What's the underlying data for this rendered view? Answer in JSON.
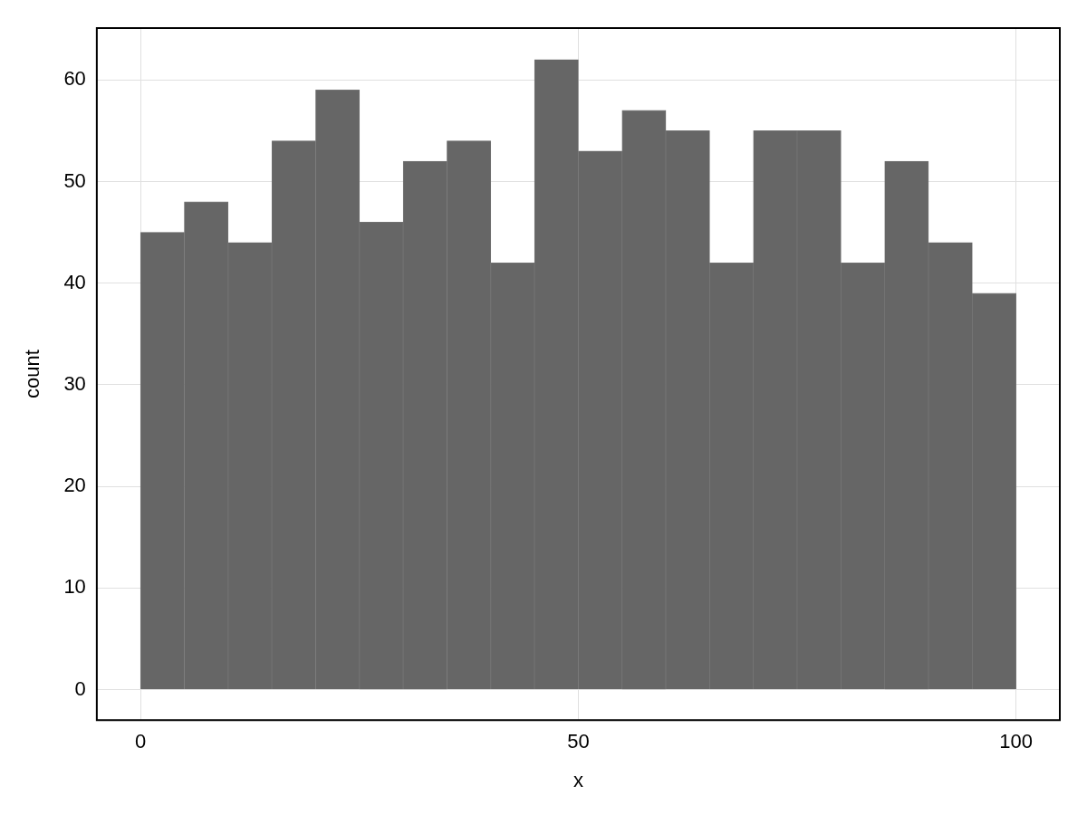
{
  "chart_data": {
    "type": "histogram",
    "xlabel": "x",
    "ylabel": "count",
    "bins": [
      0,
      5,
      10,
      15,
      20,
      25,
      30,
      35,
      40,
      45,
      50,
      55,
      60,
      65,
      70,
      75,
      80,
      85,
      90,
      95,
      100
    ],
    "values": [
      45,
      48,
      44,
      54,
      59,
      46,
      52,
      54,
      42,
      62,
      53,
      57,
      55,
      42,
      55,
      55,
      42,
      52,
      44,
      39
    ],
    "color": "#666666",
    "xlim": [
      -5,
      105
    ],
    "xticks": [
      0,
      50,
      100
    ],
    "ylim": [
      -3,
      65.1
    ],
    "yticks": [
      0,
      10,
      20,
      30,
      40,
      50,
      60
    ],
    "grid": true
  }
}
